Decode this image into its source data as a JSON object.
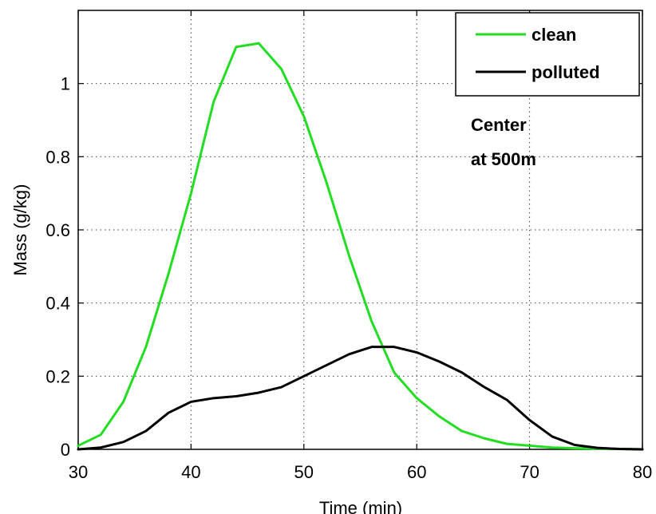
{
  "chart_data": {
    "type": "line",
    "title": "",
    "xlabel": "Time (min)",
    "ylabel": "Mass (g/kg)",
    "xlim": [
      30,
      80
    ],
    "ylim": [
      0,
      1.2
    ],
    "xticks": [
      30,
      40,
      50,
      60,
      70,
      80
    ],
    "yticks": [
      0,
      0.2,
      0.4,
      0.6,
      0.8,
      1
    ],
    "xtick_labels": [
      "30",
      "40",
      "50",
      "60",
      "70",
      "80"
    ],
    "ytick_labels": [
      "0",
      "0.2",
      "0.4",
      "0.6",
      "0.8",
      "1"
    ],
    "grid": true,
    "legend_position": "top-right",
    "series": [
      {
        "name": "clean",
        "color": "#22dd22",
        "x": [
          30,
          32,
          34,
          36,
          38,
          40,
          42,
          44,
          46,
          48,
          50,
          52,
          54,
          56,
          58,
          60,
          62,
          64,
          66,
          68,
          70,
          72,
          74,
          76,
          78,
          80
        ],
        "y": [
          0.01,
          0.04,
          0.13,
          0.28,
          0.48,
          0.7,
          0.95,
          1.1,
          1.11,
          1.04,
          0.91,
          0.73,
          0.53,
          0.35,
          0.21,
          0.14,
          0.09,
          0.05,
          0.03,
          0.015,
          0.01,
          0.005,
          0.003,
          0.002,
          0.001,
          0
        ]
      },
      {
        "name": "polluted",
        "color": "#000000",
        "x": [
          30,
          32,
          34,
          36,
          38,
          40,
          42,
          44,
          46,
          48,
          50,
          52,
          54,
          56,
          58,
          60,
          62,
          64,
          66,
          68,
          70,
          72,
          74,
          76,
          78,
          80
        ],
        "y": [
          0,
          0.005,
          0.02,
          0.05,
          0.1,
          0.13,
          0.14,
          0.145,
          0.155,
          0.17,
          0.2,
          0.23,
          0.26,
          0.28,
          0.28,
          0.265,
          0.24,
          0.21,
          0.17,
          0.135,
          0.08,
          0.035,
          0.012,
          0.004,
          0.001,
          0
        ]
      }
    ],
    "annotations": [
      "Center",
      "at 500m"
    ]
  }
}
